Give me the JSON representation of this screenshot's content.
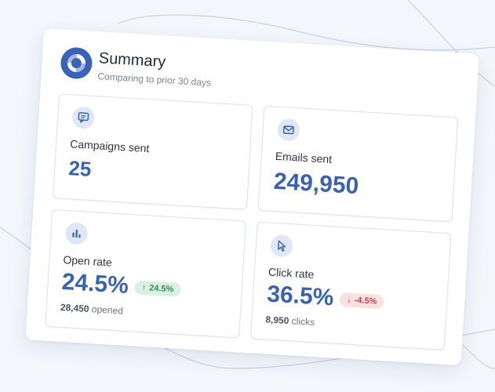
{
  "summary": {
    "title": "Summary",
    "subtitle": "Comparing to prior 30 days",
    "logo_icon": "donut-chart-icon"
  },
  "cards": {
    "campaigns": {
      "label": "Campaigns sent",
      "value": "25",
      "icon": "message-icon"
    },
    "emails": {
      "label": "Emails sent",
      "value": "249,950",
      "icon": "mail-icon"
    },
    "open_rate": {
      "label": "Open rate",
      "value": "24.5%",
      "icon": "bar-chart-icon",
      "change": "24.5%",
      "change_direction": "up",
      "footer_count": "28,450",
      "footer_text": "opened"
    },
    "click_rate": {
      "label": "Click rate",
      "value": "36.5%",
      "icon": "cursor-icon",
      "change": "-4.5%",
      "change_direction": "down",
      "footer_count": "8,950",
      "footer_text": "clicks"
    }
  },
  "colors": {
    "accent": "#3b62ad",
    "positive": "#2f8b57",
    "positive_bg": "#dcefe3",
    "negative": "#d23c48",
    "negative_bg": "#fbe0e2"
  }
}
